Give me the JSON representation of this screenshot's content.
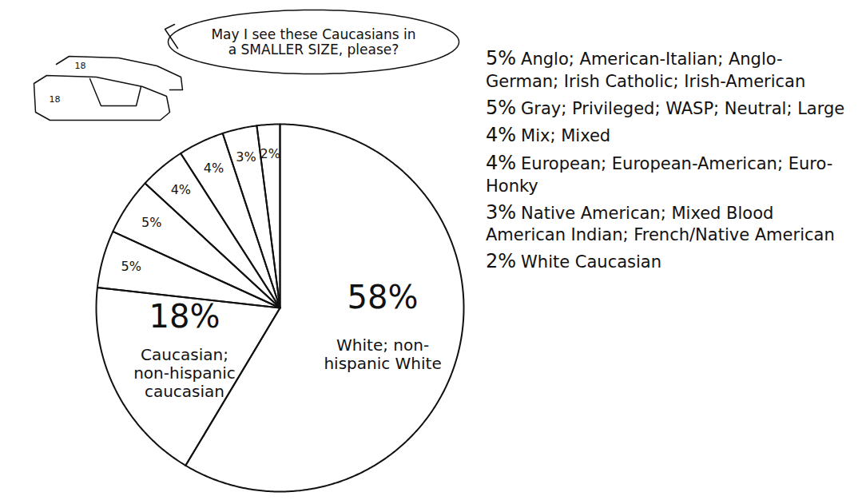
{
  "chart_data": {
    "type": "pie",
    "categories": [
      "White; non-hispanic White",
      "Caucasian; non-hispanic caucasian",
      "Anglo; American-Italian; Anglo-German; Irish Catholic; Irish-American",
      "Gray; Privileged; WASP; Neutral; Large",
      "Mix; Mixed",
      "European; European-American; Euro-Honky",
      "Native American; Mixed Blood American Indian; French/Native American",
      "White Caucasian"
    ],
    "values": [
      58,
      18,
      5,
      5,
      4,
      4,
      3,
      2
    ],
    "value_labels": [
      "58%",
      "18%",
      "5%",
      "5%",
      "4%",
      "4%",
      "3%",
      "2%"
    ],
    "data_labels": true,
    "legend": "right",
    "color": "#ffffff",
    "annotations": [
      "May I see these Caucasians in a SMALLER SIZE, please?",
      "18",
      "18"
    ]
  }
}
